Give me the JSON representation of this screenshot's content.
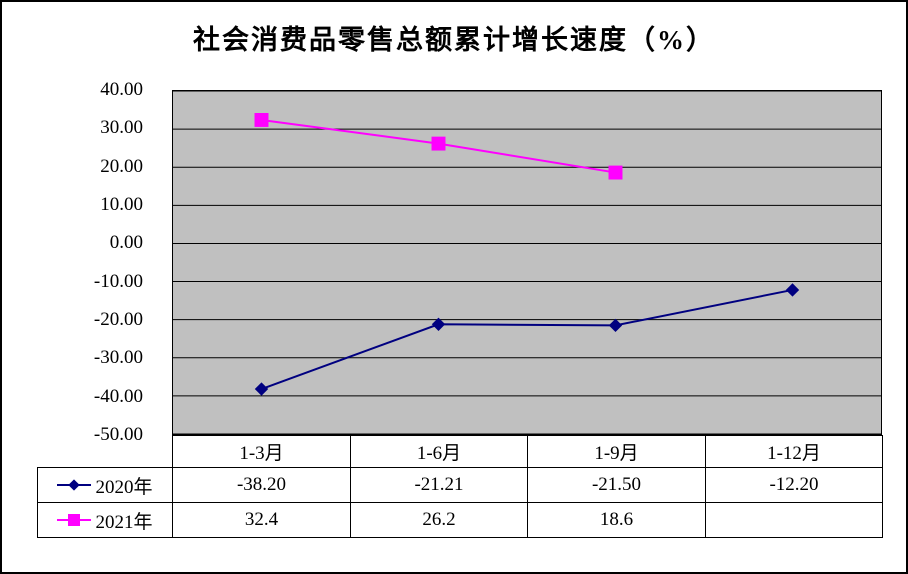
{
  "chart_data": {
    "type": "line",
    "title": "社会消费品零售总额累计增长速度（%）",
    "categories": [
      "1-3月",
      "1-6月",
      "1-9月",
      "1-12月"
    ],
    "series": [
      {
        "name": "2020年",
        "color": "#000080",
        "marker": "diamond",
        "values": [
          -38.2,
          -21.21,
          -21.5,
          -12.2
        ]
      },
      {
        "name": "2021年",
        "color": "#FF00FF",
        "marker": "square",
        "values": [
          32.4,
          26.2,
          18.6,
          null
        ]
      }
    ],
    "ylim": [
      -50,
      40
    ],
    "y_tick_step": 10,
    "y_tick_labels": [
      "40.00",
      "30.00",
      "20.00",
      "10.00",
      "0.00",
      "-10.00",
      "-20.00",
      "-30.00",
      "-40.00",
      "-50.00"
    ],
    "plot_bg": "#c0c0c0",
    "grid": true,
    "legend_position": "table-left"
  },
  "table": {
    "rows": [
      {
        "label": "2020年",
        "values": [
          "-38.20",
          "-21.21",
          "-21.50",
          "-12.20"
        ]
      },
      {
        "label": "2021年",
        "values": [
          "32.4",
          "26.2",
          "18.6",
          ""
        ]
      }
    ]
  }
}
